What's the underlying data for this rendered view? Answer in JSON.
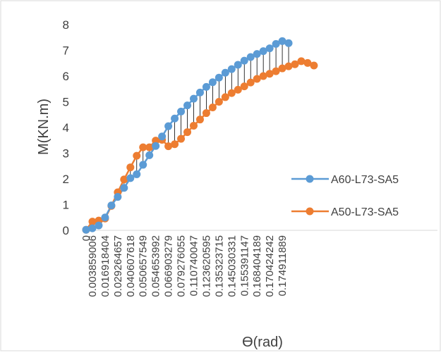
{
  "chart_data": {
    "type": "line",
    "title": "",
    "xlabel": "ϴ(rad)",
    "ylabel": "M(KN.m)",
    "ylim": [
      0,
      8
    ],
    "yticks": [
      0,
      1,
      2,
      3,
      4,
      5,
      6,
      7,
      8
    ],
    "grid": false,
    "legend_position": "right",
    "x_tick_labels": [
      "0",
      "0.003859006",
      "0.016918404",
      "0.029264657",
      "0.040607618",
      "0.050657549",
      "0.054653992",
      "0.066903279",
      "0.079276055",
      "0.110740047",
      "0.123620595",
      "0.135323715",
      "0.145030331",
      "0.155391147",
      "0.168404189",
      "0.170424242",
      "0.174911889"
    ],
    "series": [
      {
        "name": "A60-L73-SA5",
        "color": "#5B9BD5",
        "values": [
          0.02,
          0.08,
          0.19,
          0.5,
          0.97,
          1.3,
          1.65,
          2.03,
          2.18,
          2.55,
          2.92,
          3.28,
          3.65,
          4.05,
          4.35,
          4.62,
          4.86,
          5.12,
          5.36,
          5.58,
          5.76,
          5.94,
          6.13,
          6.27,
          6.44,
          6.6,
          6.74,
          6.86,
          6.97,
          7.08,
          7.25,
          7.36,
          7.28
        ]
      },
      {
        "name": "A50-L73-SA5",
        "color": "#ED7D31",
        "values": [
          0.02,
          0.34,
          0.38,
          0.46,
          0.95,
          1.48,
          1.98,
          2.45,
          2.9,
          3.23,
          3.23,
          3.49,
          3.52,
          3.27,
          3.35,
          3.56,
          3.82,
          4.07,
          4.31,
          4.56,
          4.78,
          5.0,
          5.18,
          5.34,
          5.47,
          5.6,
          5.75,
          5.89,
          6.0,
          6.09,
          6.19,
          6.3,
          6.38,
          6.46,
          6.58,
          6.51,
          6.41
        ]
      }
    ]
  }
}
